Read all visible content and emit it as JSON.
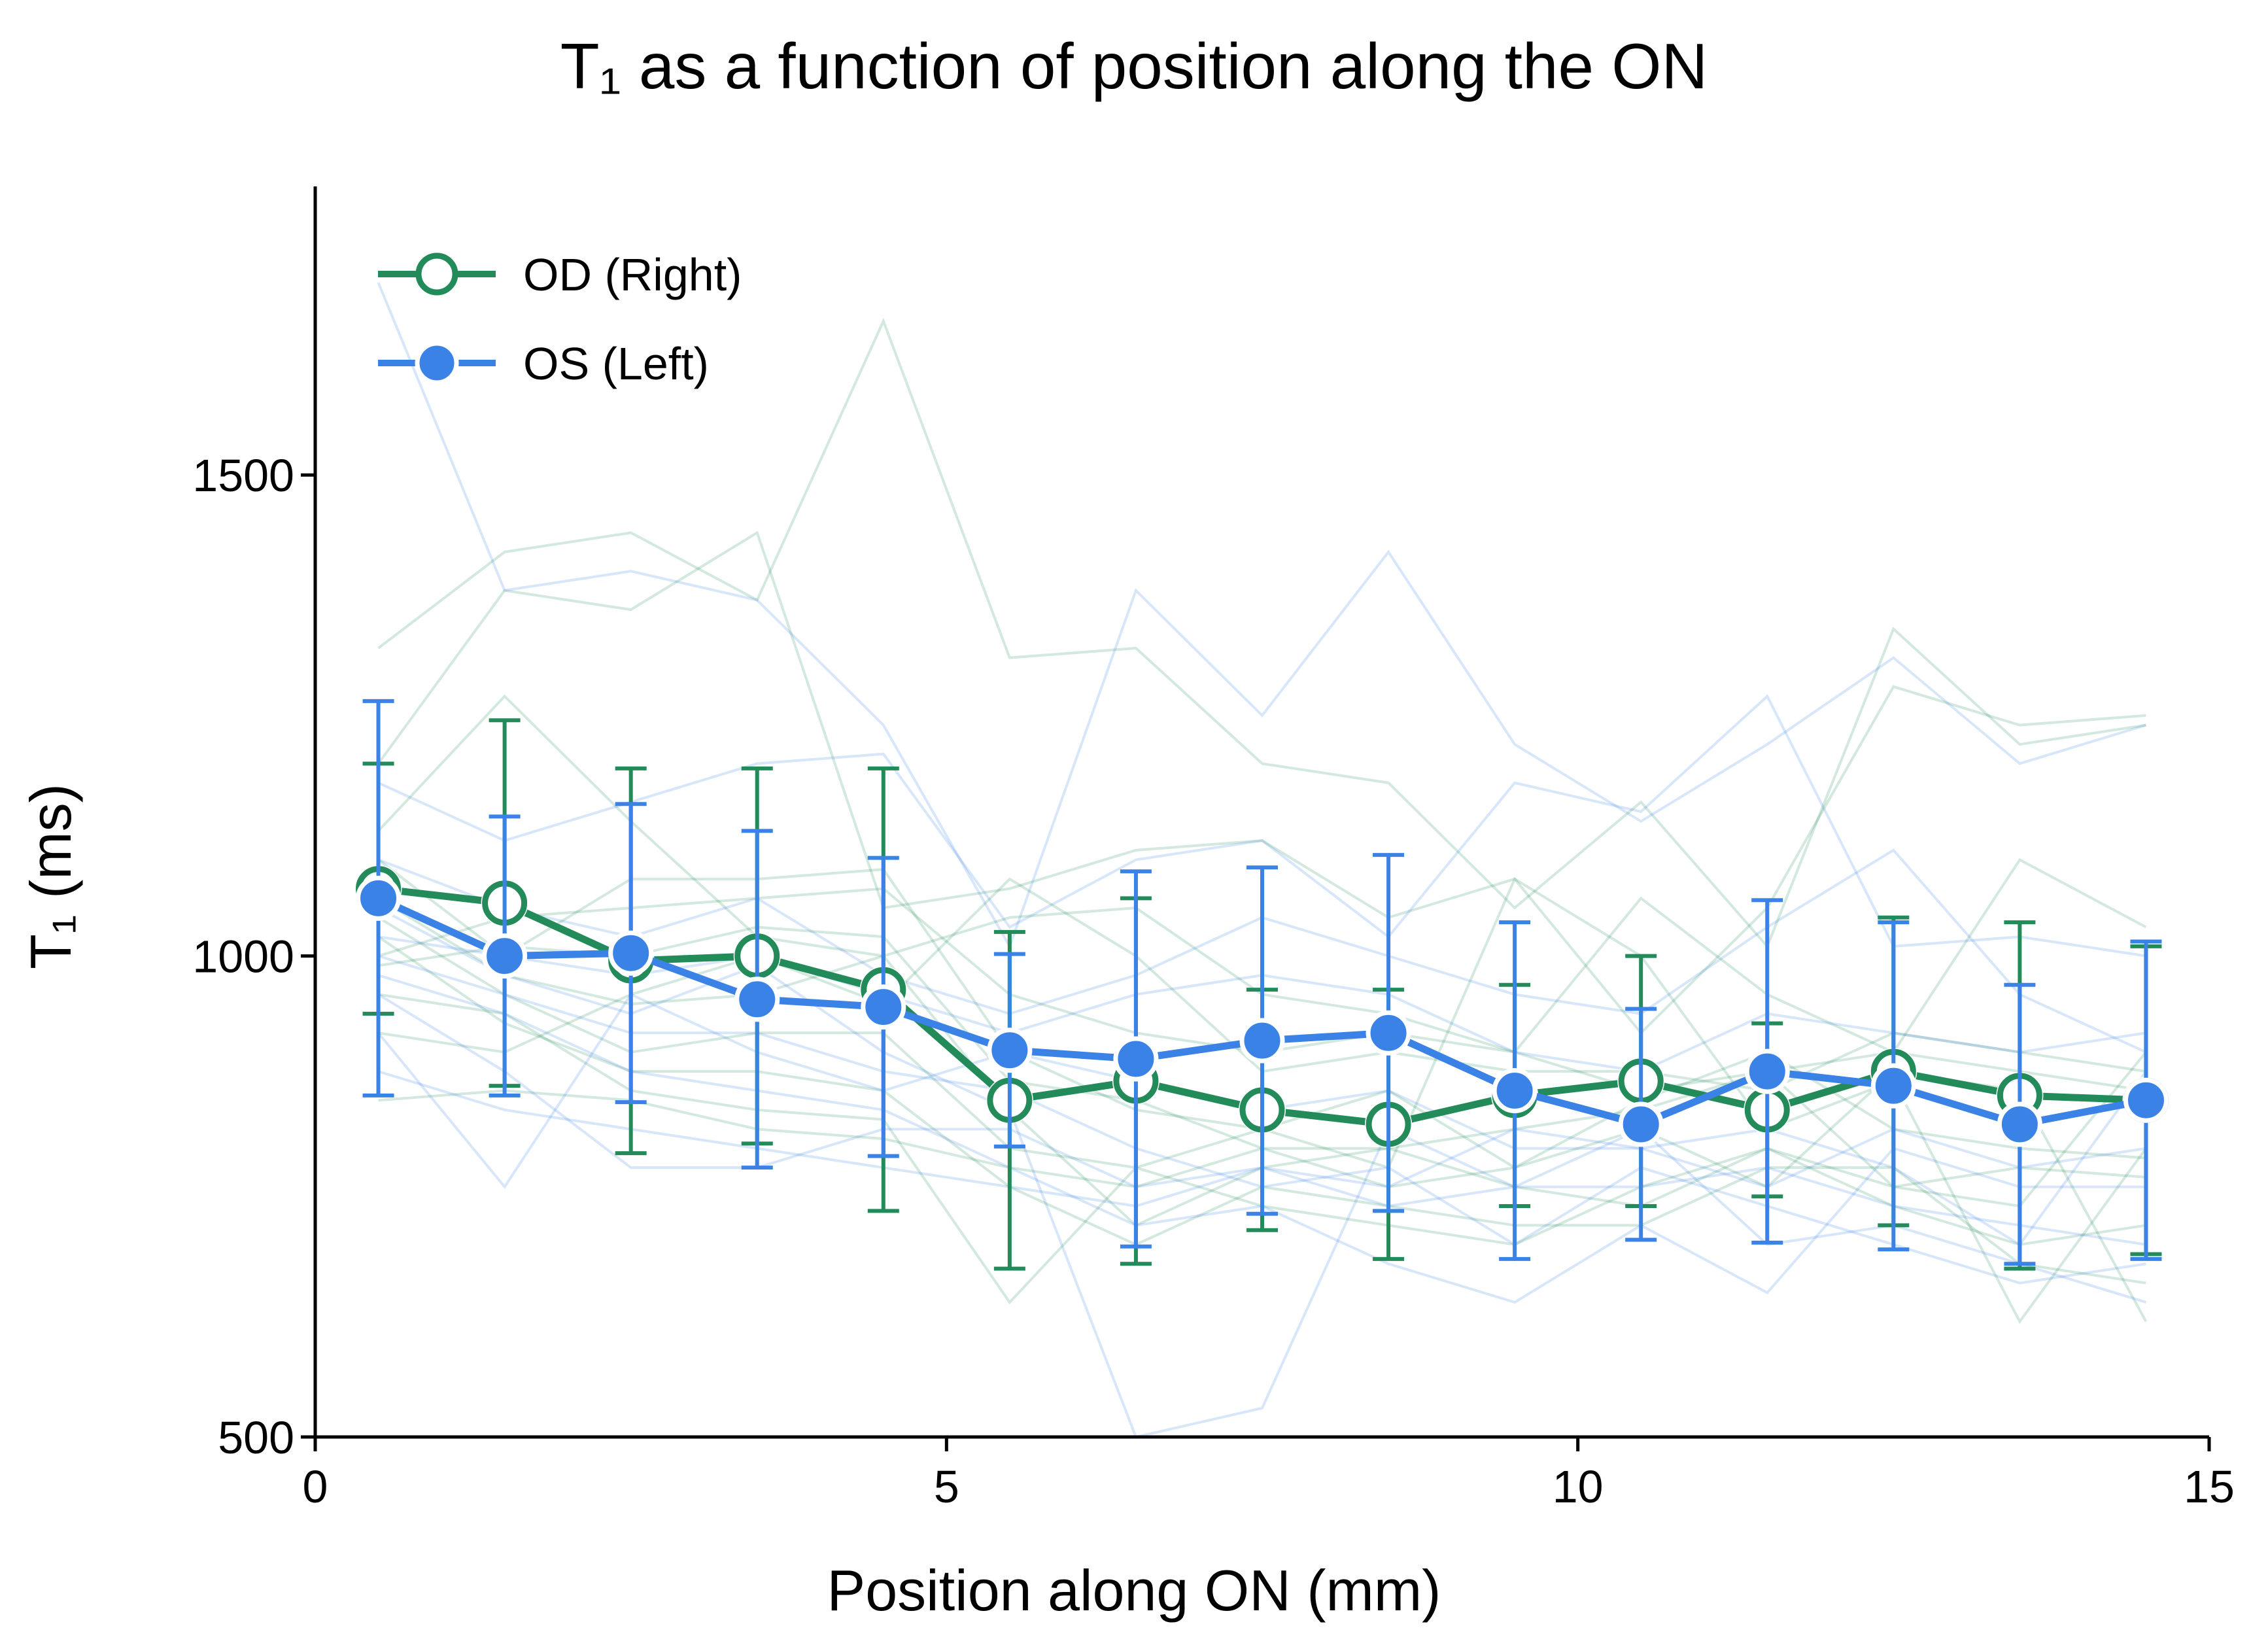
{
  "chart_data": {
    "type": "line",
    "title": "T₁ as a function of position along the ON",
    "xlabel": "Position along ON (mm)",
    "ylabel": "T₁ (ms)",
    "xlim": [
      0,
      15
    ],
    "ylim": [
      500,
      1800
    ],
    "xticks": [
      0,
      5,
      10,
      15
    ],
    "yticks": [
      500,
      1000,
      1500
    ],
    "grid": false,
    "legend_position": "top-left",
    "x": [
      0.5,
      1.5,
      2.5,
      3.5,
      4.5,
      5.5,
      6.5,
      7.5,
      8.5,
      9.5,
      10.5,
      11.5,
      12.5,
      13.5,
      14.5
    ],
    "series": [
      {
        "name": "OD (Right)",
        "color": "#238b5a",
        "marker": "open-circle",
        "values": [
          1070,
          1055,
          995,
          1000,
          965,
          850,
          870,
          840,
          825,
          855,
          870,
          840,
          880,
          855,
          850
        ],
        "error": [
          130,
          190,
          200,
          195,
          230,
          175,
          190,
          125,
          140,
          115,
          130,
          90,
          160,
          180,
          160
        ]
      },
      {
        "name": "OS (Left)",
        "color": "#3b82e6",
        "marker": "filled-circle",
        "values": [
          1060,
          1000,
          1003,
          955,
          947,
          902,
          893,
          912,
          920,
          860,
          825,
          880,
          865,
          825,
          850
        ],
        "error": [
          205,
          145,
          155,
          175,
          155,
          100,
          195,
          180,
          185,
          175,
          120,
          178,
          170,
          145,
          165
        ]
      }
    ],
    "background_series": [
      {
        "color": "#238b5a",
        "values": [
          1320,
          1420,
          1440,
          1370,
          1660,
          1310,
          1320,
          1200,
          1180,
          1050,
          1160,
          1010,
          1340,
          1220,
          1240
        ]
      },
      {
        "color": "#238b5a",
        "values": [
          1200,
          1380,
          1360,
          1440,
          1050,
          1070,
          1110,
          1120,
          1040,
          1080,
          920,
          1050,
          1280,
          1240,
          1250
        ]
      },
      {
        "color": "#238b5a",
        "values": [
          1130,
          1270,
          1140,
          1020,
          1000,
          1040,
          1050,
          960,
          940,
          900,
          1060,
          960,
          900,
          1100,
          1030
        ]
      },
      {
        "color": "#238b5a",
        "values": [
          1100,
          1000,
          1080,
          1080,
          1090,
          900,
          840,
          820,
          780,
          1080,
          1000,
          820,
          870,
          620,
          800
        ]
      },
      {
        "color": "#238b5a",
        "values": [
          1060,
          980,
          950,
          960,
          1000,
          840,
          720,
          780,
          800,
          820,
          840,
          880,
          760,
          780,
          770
        ]
      },
      {
        "color": "#238b5a",
        "values": [
          1040,
          960,
          900,
          920,
          920,
          800,
          780,
          740,
          720,
          700,
          760,
          800,
          740,
          700,
          720
        ]
      },
      {
        "color": "#238b5a",
        "values": [
          1020,
          930,
          880,
          880,
          860,
          760,
          700,
          760,
          740,
          720,
          720,
          780,
          780,
          680,
          660
        ]
      },
      {
        "color": "#238b5a",
        "values": [
          990,
          1010,
          1000,
          1030,
          1020,
          870,
          850,
          800,
          760,
          780,
          850,
          900,
          820,
          800,
          790
        ]
      },
      {
        "color": "#238b5a",
        "values": [
          960,
          940,
          860,
          840,
          830,
          640,
          780,
          820,
          860,
          780,
          820,
          760,
          880,
          860,
          620
        ]
      },
      {
        "color": "#238b5a",
        "values": [
          850,
          860,
          850,
          820,
          810,
          780,
          760,
          800,
          800,
          760,
          740,
          800,
          760,
          740,
          900
        ]
      },
      {
        "color": "#238b5a",
        "values": [
          920,
          900,
          960,
          1000,
          950,
          1080,
          1000,
          880,
          900,
          880,
          880,
          860,
          920,
          900,
          880
        ]
      },
      {
        "color": "#238b5a",
        "values": [
          1000,
          1040,
          1050,
          1060,
          1070,
          960,
          920,
          900,
          920,
          900,
          860,
          880,
          900,
          880,
          860
        ]
      },
      {
        "color": "#3b82e6",
        "values": [
          1700,
          1380,
          1400,
          1370,
          1240,
          1010,
          1380,
          1250,
          1420,
          1220,
          1140,
          1220,
          1310,
          1200,
          1240
        ]
      },
      {
        "color": "#3b82e6",
        "values": [
          1180,
          1120,
          1160,
          1200,
          1210,
          1030,
          1100,
          1120,
          1020,
          1180,
          1150,
          1270,
          1010,
          1020,
          1000
        ]
      },
      {
        "color": "#3b82e6",
        "values": [
          1100,
          1050,
          1020,
          1060,
          980,
          940,
          980,
          1040,
          1000,
          960,
          940,
          1030,
          1110,
          960,
          900
        ]
      },
      {
        "color": "#3b82e6",
        "values": [
          1050,
          980,
          940,
          990,
          900,
          840,
          500,
          530,
          820,
          760,
          820,
          700,
          720,
          680,
          640
        ]
      },
      {
        "color": "#3b82e6",
        "values": [
          1000,
          960,
          920,
          920,
          880,
          860,
          800,
          760,
          780,
          700,
          780,
          740,
          700,
          660,
          680
        ]
      },
      {
        "color": "#3b82e6",
        "values": [
          980,
          940,
          880,
          860,
          840,
          780,
          720,
          740,
          680,
          640,
          720,
          650,
          800,
          760,
          760
        ]
      },
      {
        "color": "#3b82e6",
        "values": [
          960,
          880,
          780,
          780,
          820,
          820,
          760,
          780,
          740,
          760,
          760,
          780,
          740,
          720,
          700
        ]
      },
      {
        "color": "#3b82e6",
        "values": [
          920,
          760,
          960,
          900,
          860,
          900,
          870,
          840,
          860,
          800,
          800,
          820,
          780,
          700,
          880
        ]
      },
      {
        "color": "#3b82e6",
        "values": [
          1020,
          1000,
          980,
          1000,
          960,
          920,
          960,
          980,
          960,
          900,
          880,
          940,
          920,
          900,
          920
        ]
      },
      {
        "color": "#3b82e6",
        "values": [
          880,
          840,
          820,
          800,
          780,
          760,
          740,
          780,
          760,
          820,
          800,
          760,
          820,
          780,
          800
        ]
      }
    ]
  }
}
